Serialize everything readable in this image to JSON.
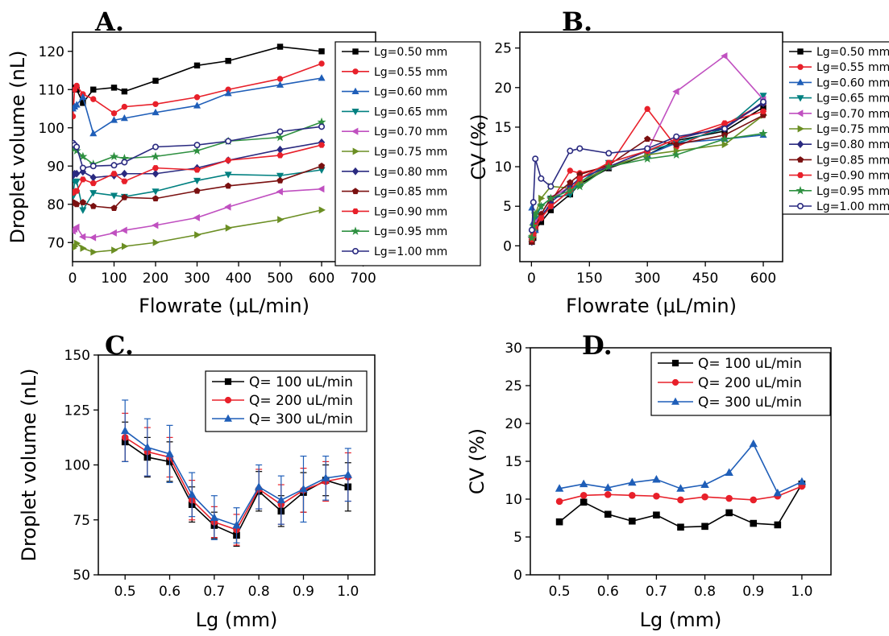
{
  "chart_data": [
    {
      "panel": "A.",
      "type": "line",
      "xlabel": "Flowrate (μL/min)",
      "ylabel": "Droplet volume (nL)",
      "xlim": [
        0,
        730
      ],
      "ylim": [
        65,
        125
      ],
      "xticks": [
        0,
        100,
        200,
        300,
        400,
        500,
        600,
        700
      ],
      "yticks": [
        70,
        80,
        90,
        100,
        110,
        120
      ],
      "legend_position": "right",
      "series": [
        {
          "name": "Lg=0.50 mm",
          "color": "#000000",
          "marker": "square",
          "x": [
            1,
            5,
            10,
            25,
            50,
            100,
            125,
            200,
            300,
            375,
            500,
            600
          ],
          "y": [
            110,
            110.5,
            110,
            106.5,
            110,
            110.5,
            109.5,
            112.3,
            116.3,
            117.5,
            121.2,
            120
          ]
        },
        {
          "name": "Lg=0.55 mm",
          "color": "#e8202a",
          "marker": "circle",
          "x": [
            1,
            5,
            10,
            25,
            50,
            100,
            125,
            200,
            300,
            375,
            500,
            600
          ],
          "y": [
            103,
            110,
            111,
            108.8,
            107.5,
            103.8,
            105.5,
            106.2,
            108,
            110,
            112.8,
            116.8
          ]
        },
        {
          "name": "Lg=0.60 mm",
          "color": "#1f5eb8",
          "marker": "triangle-up",
          "x": [
            1,
            5,
            10,
            25,
            50,
            100,
            125,
            200,
            300,
            375,
            500,
            600
          ],
          "y": [
            105,
            105.5,
            106,
            108,
            98.5,
            102,
            102.5,
            104,
            105.8,
            109,
            111.2,
            113
          ]
        },
        {
          "name": "Lg=0.65 mm",
          "color": "#008080",
          "marker": "triangle-down",
          "x": [
            1,
            5,
            10,
            25,
            50,
            100,
            125,
            200,
            300,
            375,
            500,
            600
          ],
          "y": [
            82,
            86,
            86,
            78.5,
            83,
            82.3,
            82,
            83.4,
            86.2,
            87.8,
            87.5,
            89
          ]
        },
        {
          "name": "Lg=0.70 mm",
          "color": "#c050c0",
          "marker": "triangle-left",
          "x": [
            1,
            5,
            10,
            25,
            50,
            100,
            125,
            200,
            300,
            375,
            500,
            600
          ],
          "y": [
            73,
            73.5,
            74,
            71.5,
            71.3,
            72.5,
            73.2,
            74.5,
            76.5,
            79.3,
            83.3,
            84
          ]
        },
        {
          "name": "Lg=0.75 mm",
          "color": "#6b8e23",
          "marker": "triangle-right",
          "x": [
            1,
            5,
            10,
            25,
            50,
            100,
            125,
            200,
            300,
            375,
            500,
            600
          ],
          "y": [
            68.5,
            69,
            69.8,
            68.5,
            67.5,
            68,
            69,
            70,
            72,
            73.8,
            76,
            78.5
          ]
        },
        {
          "name": "Lg=0.80 mm",
          "color": "#2a2a80",
          "marker": "diamond",
          "x": [
            1,
            5,
            10,
            25,
            50,
            100,
            125,
            200,
            300,
            375,
            500,
            600
          ],
          "y": [
            87.5,
            88,
            88,
            88.5,
            87,
            87.5,
            88,
            88,
            89.5,
            91.5,
            94.3,
            96.2
          ]
        },
        {
          "name": "Lg=0.85 mm",
          "color": "#7a1010",
          "marker": "pentagon",
          "x": [
            1,
            5,
            10,
            25,
            50,
            100,
            125,
            200,
            300,
            375,
            500,
            600
          ],
          "y": [
            80.5,
            80.3,
            80,
            80.5,
            79.5,
            79,
            81.8,
            81.5,
            83.5,
            84.8,
            86.2,
            90
          ]
        },
        {
          "name": "Lg=0.90 mm",
          "color": "#e8202a",
          "marker": "hexagon",
          "x": [
            1,
            5,
            10,
            25,
            50,
            100,
            125,
            200,
            300,
            375,
            500,
            600
          ],
          "y": [
            83,
            83.3,
            83.5,
            86.5,
            85.5,
            88,
            86,
            89.5,
            89,
            91.5,
            92.8,
            95.5
          ]
        },
        {
          "name": "Lg=0.95 mm",
          "color": "#2e9040",
          "marker": "star",
          "x": [
            1,
            5,
            10,
            25,
            50,
            100,
            125,
            200,
            300,
            375,
            500,
            600
          ],
          "y": [
            95,
            94.5,
            94,
            92.5,
            90.5,
            92.5,
            92,
            92.5,
            94,
            96.5,
            97.5,
            101.5
          ]
        },
        {
          "name": "Lg=1.00 mm",
          "color": "#2a2a80",
          "marker": "circle-open",
          "x": [
            1,
            5,
            10,
            25,
            50,
            100,
            125,
            200,
            300,
            375,
            500,
            600
          ],
          "y": [
            96,
            95.5,
            95,
            89.5,
            90,
            90.2,
            91,
            95,
            95.5,
            96.5,
            99,
            100.3
          ]
        }
      ]
    },
    {
      "panel": "B.",
      "type": "line",
      "xlabel": "Flowrate (μL/min)",
      "ylabel": "CV (%)",
      "xlim": [
        -30,
        650
      ],
      "ylim": [
        -2,
        27
      ],
      "xticks": [
        0,
        150,
        300,
        450,
        600
      ],
      "yticks": [
        0,
        5,
        10,
        15,
        20,
        25
      ],
      "legend_position": "right",
      "series": [
        {
          "name": "Lg=0.50 mm",
          "color": "#000000",
          "marker": "square",
          "x": [
            1,
            5,
            10,
            25,
            50,
            100,
            125,
            200,
            300,
            375,
            500,
            600
          ],
          "y": [
            0.5,
            1,
            2,
            3,
            4.5,
            6.5,
            7.8,
            9.8,
            11.5,
            13.3,
            14.5,
            17.5
          ]
        },
        {
          "name": "Lg=0.55 mm",
          "color": "#e8202a",
          "marker": "circle",
          "x": [
            1,
            5,
            10,
            25,
            50,
            100,
            125,
            200,
            300,
            375,
            500,
            600
          ],
          "y": [
            0.5,
            1.2,
            2.2,
            3.5,
            5.5,
            9.5,
            9.2,
            10,
            17.3,
            12.5,
            15.3,
            18
          ]
        },
        {
          "name": "Lg=0.60 mm",
          "color": "#1f5eb8",
          "marker": "triangle-up",
          "x": [
            1,
            5,
            10,
            25,
            50,
            100,
            125,
            200,
            300,
            375,
            500,
            600
          ],
          "y": [
            4.8,
            3,
            2,
            4,
            5,
            7,
            8,
            10,
            11.5,
            13,
            13.5,
            14
          ]
        },
        {
          "name": "Lg=0.65 mm",
          "color": "#008080",
          "marker": "triangle-down",
          "x": [
            1,
            5,
            10,
            25,
            50,
            100,
            125,
            200,
            300,
            375,
            500,
            600
          ],
          "y": [
            1,
            2,
            3.5,
            5,
            6,
            6.5,
            8,
            10.5,
            12,
            13,
            14.8,
            19
          ]
        },
        {
          "name": "Lg=0.70 mm",
          "color": "#c050c0",
          "marker": "triangle-left",
          "x": [
            1,
            5,
            10,
            25,
            50,
            100,
            125,
            200,
            300,
            375,
            500,
            600
          ],
          "y": [
            1,
            2,
            3,
            4,
            6,
            7.5,
            8.5,
            10,
            12,
            19.5,
            24,
            18.5
          ]
        },
        {
          "name": "Lg=0.75 mm",
          "color": "#6b8e23",
          "marker": "triangle-right",
          "x": [
            1,
            5,
            10,
            25,
            50,
            100,
            125,
            200,
            300,
            375,
            500,
            600
          ],
          "y": [
            1,
            2,
            4,
            6,
            7.5,
            7.3,
            8,
            10,
            11.5,
            12,
            12.8,
            16.5
          ]
        },
        {
          "name": "Lg=0.80 mm",
          "color": "#2a2a80",
          "marker": "diamond",
          "x": [
            1,
            5,
            10,
            25,
            50,
            100,
            125,
            200,
            300,
            375,
            500,
            600
          ],
          "y": [
            0.5,
            1.5,
            2.5,
            3.5,
            5.5,
            7.5,
            8.5,
            10,
            12,
            13.5,
            15,
            18
          ]
        },
        {
          "name": "Lg=0.85 mm",
          "color": "#7a1010",
          "marker": "pentagon",
          "x": [
            1,
            5,
            10,
            25,
            50,
            100,
            125,
            200,
            300,
            375,
            500,
            600
          ],
          "y": [
            0.5,
            1.5,
            2.5,
            4,
            6,
            8,
            9,
            10.2,
            13.5,
            12.8,
            14,
            16.5
          ]
        },
        {
          "name": "Lg=0.90 mm",
          "color": "#e8202a",
          "marker": "hexagon",
          "x": [
            1,
            5,
            10,
            25,
            50,
            100,
            125,
            200,
            300,
            375,
            500,
            600
          ],
          "y": [
            0.8,
            1.5,
            2.5,
            3.5,
            5,
            7,
            8.5,
            10.5,
            12,
            13.5,
            15.5,
            17
          ]
        },
        {
          "name": "Lg=0.95 mm",
          "color": "#2e9040",
          "marker": "star",
          "x": [
            1,
            5,
            10,
            25,
            50,
            100,
            125,
            200,
            300,
            375,
            500,
            600
          ],
          "y": [
            1,
            2.5,
            4,
            5,
            6,
            7,
            7.5,
            10,
            11,
            11.5,
            13.5,
            14.2
          ]
        },
        {
          "name": "Lg=1.00 mm",
          "color": "#2a2a80",
          "marker": "circle-open",
          "x": [
            1,
            5,
            10,
            25,
            50,
            100,
            125,
            200,
            300,
            375,
            500,
            600
          ],
          "y": [
            2,
            5.5,
            11,
            8.5,
            7.5,
            12,
            12.3,
            11.7,
            12.3,
            13.8,
            14.8,
            18.2
          ]
        }
      ]
    },
    {
      "panel": "C.",
      "type": "line",
      "xlabel": "Lg (mm)",
      "ylabel": "Droplet volume (nL)",
      "xlim": [
        0.44,
        1.06
      ],
      "ylim": [
        50,
        150
      ],
      "xticks": [
        0.5,
        0.6,
        0.7,
        0.8,
        0.9,
        1.0
      ],
      "xticklabels": [
        "0.5",
        "0.6",
        "0.7",
        "0.8",
        "0.9",
        "1.0"
      ],
      "yticks": [
        50,
        75,
        100,
        125,
        150
      ],
      "legend_position": "top-right",
      "categories": [
        0.5,
        0.55,
        0.6,
        0.65,
        0.7,
        0.75,
        0.8,
        0.85,
        0.9,
        0.95,
        1.0
      ],
      "series": [
        {
          "name": "Q= 100 uL/min",
          "color": "#000000",
          "marker": "square",
          "values": [
            110.5,
            103.5,
            101.5,
            82,
            72.5,
            68,
            88,
            79,
            87.5,
            93,
            90
          ],
          "errors": [
            9,
            9,
            9,
            8,
            6,
            5,
            9,
            7,
            9,
            7,
            11
          ]
        },
        {
          "name": "Q= 200 uL/min",
          "color": "#e8202a",
          "marker": "circle",
          "values": [
            112.5,
            106,
            103.5,
            84,
            74,
            70.5,
            89,
            82,
            88.5,
            92.5,
            94.5
          ],
          "errors": [
            11,
            11,
            9,
            9,
            7,
            7,
            9,
            9,
            10,
            9,
            11
          ]
        },
        {
          "name": "Q= 300 uL/min",
          "color": "#1f5eb8",
          "marker": "triangle-up",
          "values": [
            115.5,
            108,
            105,
            86.5,
            76,
            72.5,
            90,
            84,
            89,
            94,
            95.5
          ],
          "errors": [
            14,
            13,
            13,
            10,
            10,
            8,
            10,
            11,
            15,
            10,
            12
          ]
        }
      ]
    },
    {
      "panel": "D.",
      "type": "line",
      "xlabel": "Lg (mm)",
      "ylabel": "CV (%)",
      "xlim": [
        0.44,
        1.06
      ],
      "ylim": [
        0,
        30
      ],
      "xticks": [
        0.5,
        0.6,
        0.7,
        0.8,
        0.9,
        1.0
      ],
      "xticklabels": [
        "0.5",
        "0.6",
        "0.7",
        "0.8",
        "0.9",
        "1.0"
      ],
      "yticks": [
        0,
        5,
        10,
        15,
        20,
        25,
        30
      ],
      "legend_position": "top-right",
      "categories": [
        0.5,
        0.55,
        0.6,
        0.65,
        0.7,
        0.75,
        0.8,
        0.85,
        0.9,
        0.95,
        1.0
      ],
      "series": [
        {
          "name": "Q= 100 uL/min",
          "color": "#000000",
          "marker": "square",
          "values": [
            7,
            9.6,
            8,
            7.1,
            7.9,
            6.3,
            6.4,
            8.2,
            6.8,
            6.6,
            12
          ]
        },
        {
          "name": "Q= 200 uL/min",
          "color": "#e8202a",
          "marker": "circle",
          "values": [
            9.7,
            10.5,
            10.6,
            10.5,
            10.4,
            9.9,
            10.3,
            10.1,
            9.9,
            10.4,
            11.7
          ]
        },
        {
          "name": "Q= 300 uL/min",
          "color": "#1f5eb8",
          "marker": "triangle-up",
          "values": [
            11.4,
            12,
            11.5,
            12.2,
            12.6,
            11.4,
            11.9,
            13.5,
            17.3,
            10.8,
            12.3
          ]
        }
      ]
    }
  ]
}
